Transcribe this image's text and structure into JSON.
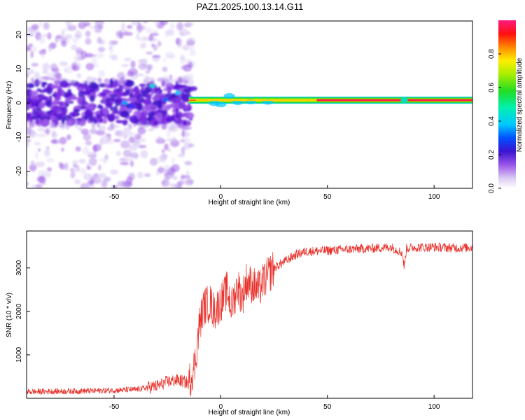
{
  "title": "PAZ1.2025.100.13.14.G11",
  "colors": {
    "snr_line": "#e8302a",
    "axis": "#000000",
    "background": "#ffffff"
  },
  "chart_data": [
    {
      "type": "heatmap",
      "title": "PAZ1.2025.100.13.14.G11",
      "xlabel": "Height of straight line (km)",
      "ylabel": "Frequency (Hz)",
      "xlim": [
        -91,
        118
      ],
      "ylim": [
        -25,
        24
      ],
      "xticks": [
        -50,
        0,
        50,
        100
      ],
      "yticks": [
        -20,
        -10,
        0,
        10,
        20
      ],
      "colorbar": {
        "label": "Normalized spectral amplitude",
        "range": [
          0,
          1
        ],
        "ticks": [
          "0.0",
          "0.2",
          "0.4",
          "0.6",
          "0.8"
        ],
        "colormap": "rainbow (white-lavender → violet → blue → cyan → green → yellow → orange → red → magenta)"
      },
      "features": {
        "dominant_frequency_hz": 0.8,
        "coherent_tone_from_km": -15,
        "noise_scatter_region_km": [
          -91,
          -15
        ]
      }
    },
    {
      "type": "line",
      "xlabel": "Height of straight line (km)",
      "ylabel": "SNR (10 * v/v)",
      "xlim": [
        -91,
        118
      ],
      "ylim": [
        0,
        3850
      ],
      "xticks": [
        -50,
        0,
        50,
        100
      ],
      "yticks": [
        1000,
        2000,
        3000
      ],
      "x": [
        -91,
        -60,
        -40,
        -30,
        -25,
        -20,
        -15,
        -12,
        -10,
        -8,
        -5,
        -3,
        0,
        3,
        5,
        8,
        10,
        12,
        15,
        18,
        20,
        25,
        30,
        35,
        40,
        50,
        60,
        70,
        80,
        85,
        86,
        87,
        90,
        100,
        110,
        118
      ],
      "y": [
        150,
        170,
        200,
        280,
        380,
        420,
        350,
        800,
        1700,
        2100,
        2200,
        2000,
        2200,
        2500,
        2100,
        2600,
        2300,
        2700,
        2600,
        2500,
        2700,
        3000,
        3150,
        3300,
        3380,
        3400,
        3430,
        3450,
        3480,
        3350,
        3000,
        3450,
        3470,
        3480,
        3460,
        3470
      ]
    }
  ]
}
